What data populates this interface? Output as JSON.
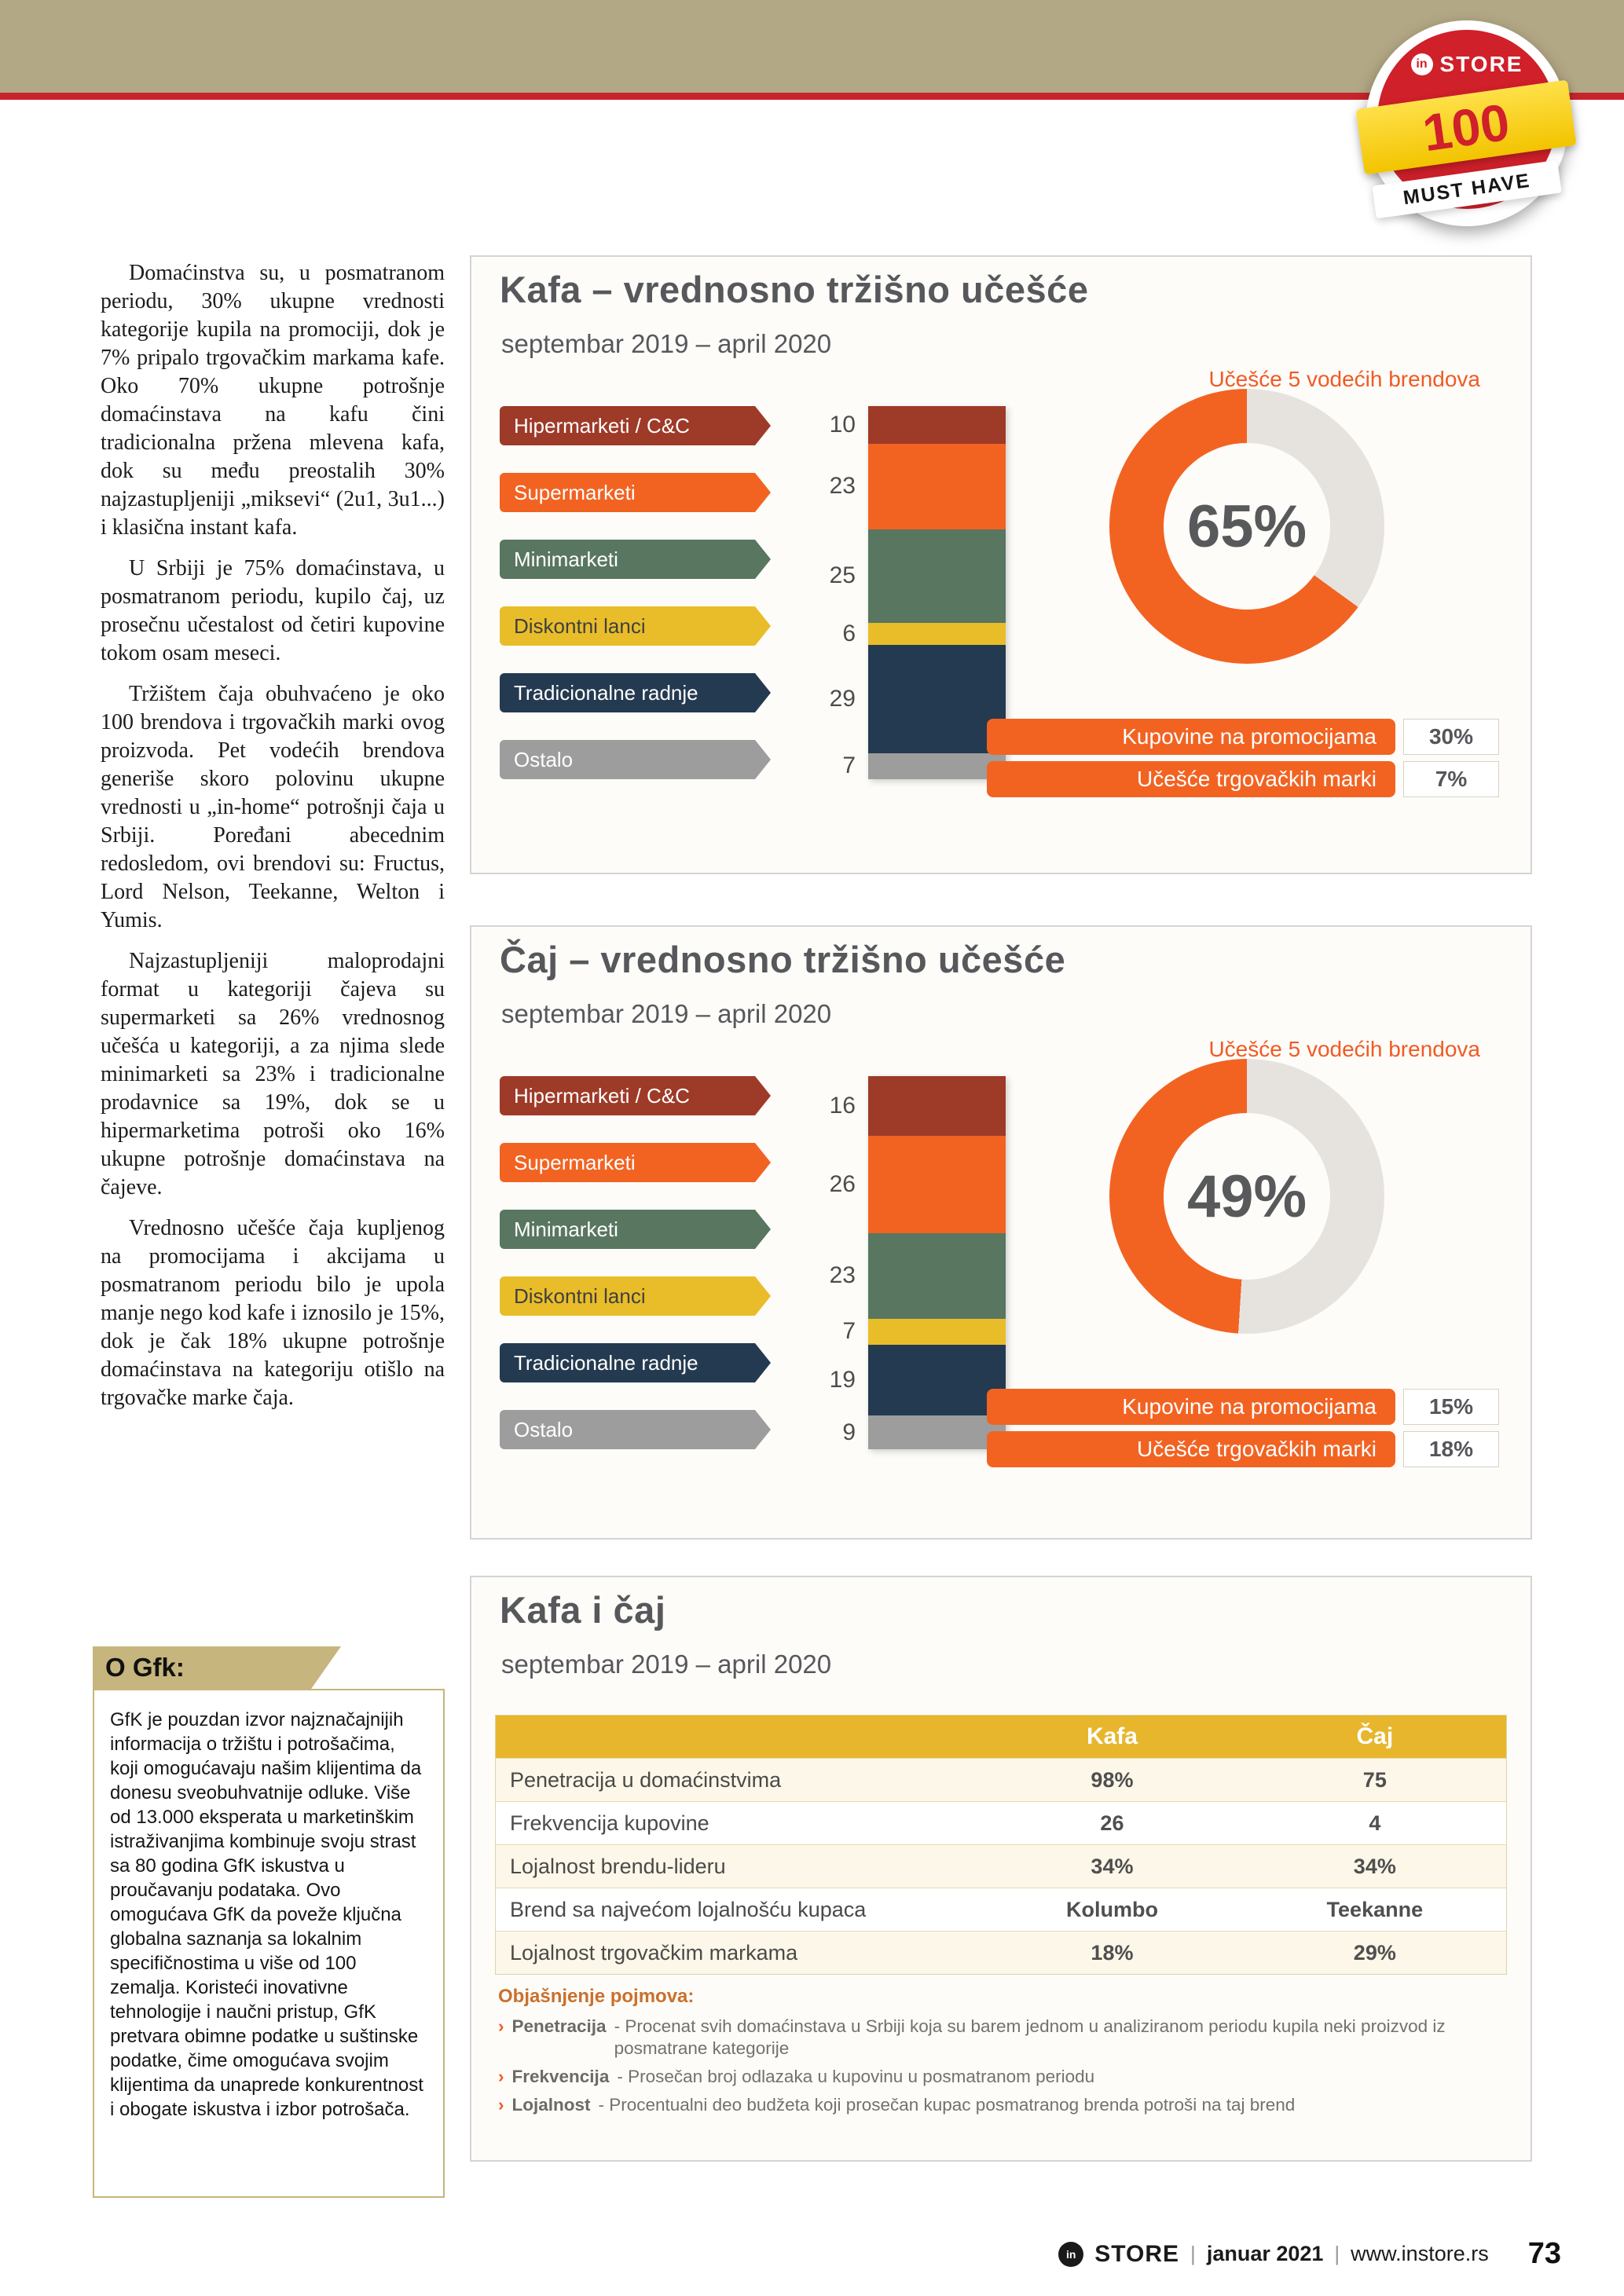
{
  "page": {
    "badge": {
      "logo_in": "in",
      "logo_store": "STORE",
      "number": "100",
      "ribbon": "MUST HAVE"
    },
    "footer": {
      "logo": "in",
      "brand": "STORE",
      "sep": "|",
      "date": "januar 2021",
      "url": "www.instore.rs",
      "page_number": "73"
    }
  },
  "article": {
    "paragraphs": [
      "Domaćinstva su, u posmatranom periodu, 30% ukupne vrednosti kategorije kupila na promociji, dok je 7% pripalo trgovačkim markama kafe. Oko 70% ukupne potrošnje domaćinstava na kafu čini tradicionalna pržena mlevena kafa, dok su među preostalih 30% najzastupljeniji „miksevi“ (2u1, 3u1...) i klasična instant kafa.",
      "U Srbiji je 75% domaćinstava, u posmatranom periodu, kupilo čaj, uz prosečnu učestalost od četiri kupovine tokom osam meseci.",
      "Tržištem čaja obuhvaćeno je oko 100 brendova i trgovačkih marki ovog proizvoda. Pet vodećih brendova generiše skoro polovinu ukupne vrednosti u „in-home“ potrošnji čaja u Srbiji. Poređani abecednim redosledom, ovi brendovi su: Fructus, Lord Nelson, Teekanne, Welton i Yumis.",
      "Najzastupljeniji maloprodajni format u kategoriji čajeva su supermarketi sa 26% vrednosnog učešća u kategoriji, a za njima slede minimarketi sa 23% i tradicionalne prodavnice sa 19%, dok se u hipermarketima potroši oko 16% ukupne potrošnje domaćinstava na čajeve.",
      "Vrednosno učešće čaja kupljenog na promocijama i akcijama u posmatranom periodu bilo je upola manje nego kod kafe i iznosilo je 15%, dok je čak 18% ukupne potrošnje domaćinstava na kategoriju otišlo na trgovačke marke čaja."
    ]
  },
  "gfk_box": {
    "heading": "O Gfk:",
    "body": "GfK je pouzdan izvor najznačajnijih informacija o tržištu i potrošačima, koji omogućavaju našim klijentima da donesu sveobuhvatnije odluke. Više od 13.000 eksperata u marketinškim istraživanjima kombinuje svoju strast sa 80 godina GfK iskustva u proučavanju podataka. Ovo omogućava GfK da poveže ključna globalna saznanja sa lokalnim specifičnostima u više od 100 zemalja. Koristeći inovativne tehnologije i naučni pristup, GfK pretvara obimne podatke u suštinske podatke, čime omogućava svojim klijentima da unaprede konkurentnost i obogate iskustva i izbor potrošača."
  },
  "chart_data": [
    {
      "type": "bar",
      "subtype": "stacked-column-with-donut",
      "title": "Kafa – vrednosno tržišno učešće",
      "subtitle": "septembar 2019 – april 2020",
      "categories": [
        "Hipermarketi / C&C",
        "Supermarketi",
        "Minimarketi",
        "Diskontni lanci",
        "Tradicionalne radnje",
        "Ostalo"
      ],
      "values": [
        10,
        23,
        25,
        6,
        29,
        7
      ],
      "colors": [
        "#9e3a28",
        "#f26322",
        "#587660",
        "#e9bd29",
        "#243a50",
        "#9d9d9d"
      ],
      "text_colors": [
        "#ffffff",
        "#ffffff",
        "#ffffff",
        "#3f3f3f",
        "#ffffff",
        "#ffffff"
      ],
      "donut": {
        "value": 65,
        "label": "65%",
        "note": "Učešće 5 vodećih brendova",
        "color": "#f26322",
        "rest_color": "#e6e3df"
      },
      "footers": [
        {
          "label": "Kupovine na promocijama",
          "value": "30%"
        },
        {
          "label": "Učešće trgovačkih marki",
          "value": "7%"
        }
      ]
    },
    {
      "type": "bar",
      "subtype": "stacked-column-with-donut",
      "title": "Čaj – vrednosno tržišno učešće",
      "subtitle": "septembar 2019 – april 2020",
      "categories": [
        "Hipermarketi / C&C",
        "Supermarketi",
        "Minimarketi",
        "Diskontni lanci",
        "Tradicionalne radnje",
        "Ostalo"
      ],
      "values": [
        16,
        26,
        23,
        7,
        19,
        9
      ],
      "colors": [
        "#9e3a28",
        "#f26322",
        "#587660",
        "#e9bd29",
        "#243a50",
        "#9d9d9d"
      ],
      "text_colors": [
        "#ffffff",
        "#ffffff",
        "#ffffff",
        "#3f3f3f",
        "#ffffff",
        "#ffffff"
      ],
      "donut": {
        "value": 49,
        "label": "49%",
        "note": "Učešće 5 vodećih brendova",
        "color": "#f26322",
        "rest_color": "#e6e3df"
      },
      "footers": [
        {
          "label": "Kupovine na promocijama",
          "value": "15%"
        },
        {
          "label": "Učešće trgovačkih marki",
          "value": "18%"
        }
      ]
    },
    {
      "type": "table",
      "title": "Kafa i čaj",
      "subtitle": "septembar 2019 – april 2020",
      "columns": [
        "",
        "Kafa",
        "Čaj"
      ],
      "rows": [
        [
          "Penetracija u domaćinstvima",
          "98%",
          "75"
        ],
        [
          "Frekvencija kupovine",
          "26",
          "4"
        ],
        [
          "Lojalnost brendu-lideru",
          "34%",
          "34%"
        ],
        [
          "Brend sa najvećom lojalnošću kupaca",
          "Kolumbo",
          "Teekanne"
        ],
        [
          "Lojalnost trgovačkim markama",
          "18%",
          "29%"
        ]
      ],
      "notes_title": "Objašnjenje pojmova:",
      "bullet": "›",
      "notes": [
        {
          "term": "Penetracija",
          "text": "- Procenat svih domaćinstava u Srbiji koja su barem jednom u analiziranom periodu kupila neki proizvod iz posmatrane kategorije"
        },
        {
          "term": "Frekvencija",
          "text": "- Prosečan broj odlazaka u kupovinu u posmatranom periodu"
        },
        {
          "term": "Lojalnost",
          "text": "- Procentualni deo budžeta koji prosečan kupac posmatranog brenda potroši na taj brend"
        }
      ]
    }
  ]
}
